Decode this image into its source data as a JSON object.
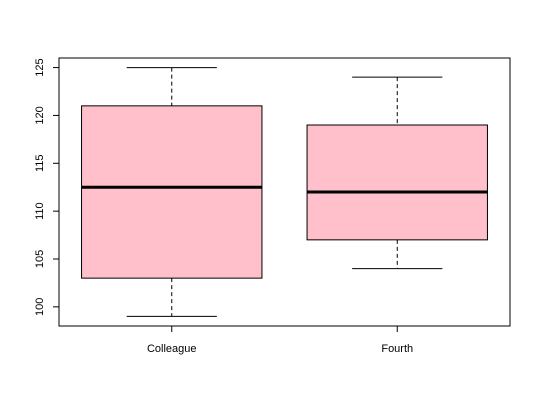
{
  "chart_data": {
    "type": "box",
    "categories": [
      "Colleague",
      "Fourth"
    ],
    "boxes": [
      {
        "name": "Colleague",
        "min": 99,
        "q1": 103,
        "median": 112.5,
        "q3": 121,
        "max": 125
      },
      {
        "name": "Fourth",
        "min": 104,
        "q1": 107,
        "median": 112,
        "q3": 119,
        "max": 124
      }
    ],
    "ylim": [
      98,
      126
    ],
    "yticks": [
      100,
      105,
      110,
      115,
      120,
      125
    ],
    "title": "",
    "xlabel": "",
    "ylabel": "",
    "grid": false,
    "colors": {
      "box_fill": "#ffc0cb",
      "box_stroke": "#000000",
      "median": "#000000"
    }
  }
}
